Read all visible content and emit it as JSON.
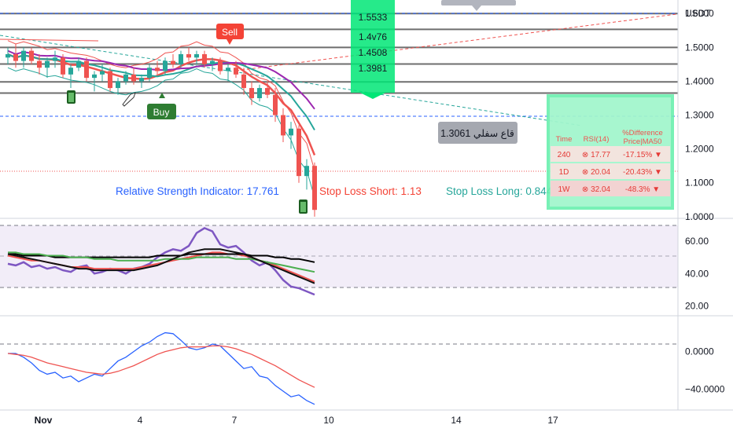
{
  "chart_data": [
    {
      "type": "candlestick",
      "title": "",
      "currency": "USDT",
      "y_ticks": [
        "1.6000",
        "1.5000",
        "1.4000",
        "1.3000",
        "1.2000",
        "1.1000",
        "1.0000"
      ],
      "ylim": [
        0.995,
        1.64
      ],
      "x_ticks": [
        "Nov",
        "4",
        "7",
        "10",
        "14",
        "17"
      ],
      "candles": [
        [
          1.47,
          1.5,
          1.45,
          1.48
        ],
        [
          1.48,
          1.51,
          1.44,
          1.46
        ],
        [
          1.46,
          1.5,
          1.44,
          1.49
        ],
        [
          1.49,
          1.5,
          1.45,
          1.46
        ],
        [
          1.46,
          1.48,
          1.42,
          1.44
        ],
        [
          1.44,
          1.47,
          1.41,
          1.46
        ],
        [
          1.46,
          1.49,
          1.44,
          1.47
        ],
        [
          1.47,
          1.48,
          1.41,
          1.42
        ],
        [
          1.42,
          1.45,
          1.38,
          1.44
        ],
        [
          1.44,
          1.47,
          1.43,
          1.46
        ],
        [
          1.46,
          1.47,
          1.4,
          1.41
        ],
        [
          1.41,
          1.43,
          1.37,
          1.42
        ],
        [
          1.42,
          1.45,
          1.4,
          1.43
        ],
        [
          1.43,
          1.44,
          1.37,
          1.38
        ],
        [
          1.38,
          1.41,
          1.36,
          1.4
        ],
        [
          1.4,
          1.43,
          1.39,
          1.42
        ],
        [
          1.42,
          1.44,
          1.39,
          1.4
        ],
        [
          1.4,
          1.42,
          1.38,
          1.41
        ],
        [
          1.41,
          1.45,
          1.4,
          1.44
        ],
        [
          1.44,
          1.46,
          1.42,
          1.43
        ],
        [
          1.43,
          1.47,
          1.42,
          1.46
        ],
        [
          1.46,
          1.48,
          1.44,
          1.45
        ],
        [
          1.45,
          1.49,
          1.44,
          1.48
        ],
        [
          1.48,
          1.5,
          1.46,
          1.47
        ],
        [
          1.47,
          1.49,
          1.45,
          1.48
        ],
        [
          1.48,
          1.49,
          1.44,
          1.45
        ],
        [
          1.45,
          1.47,
          1.43,
          1.46
        ],
        [
          1.46,
          1.47,
          1.42,
          1.43
        ],
        [
          1.43,
          1.45,
          1.4,
          1.44
        ],
        [
          1.44,
          1.46,
          1.41,
          1.42
        ],
        [
          1.42,
          1.44,
          1.36,
          1.38
        ],
        [
          1.38,
          1.4,
          1.33,
          1.35
        ],
        [
          1.35,
          1.39,
          1.34,
          1.38
        ],
        [
          1.38,
          1.4,
          1.35,
          1.36
        ],
        [
          1.36,
          1.38,
          1.28,
          1.3
        ],
        [
          1.3,
          1.32,
          1.22,
          1.24
        ],
        [
          1.24,
          1.28,
          1.2,
          1.26
        ],
        [
          1.26,
          1.27,
          1.1,
          1.12
        ],
        [
          1.12,
          1.17,
          1.08,
          1.15
        ],
        [
          1.15,
          1.16,
          1.0,
          1.02
        ]
      ],
      "overlay_labels": [
        {
          "text": "1.5533",
          "price": 1.5533
        },
        {
          "text": "1.4v76",
          "price": 1.5076
        },
        {
          "text": "1.4508",
          "price": 1.4508
        },
        {
          "text": "1.3981",
          "price": 1.3981
        }
      ],
      "support_label": "1.3061 قاع سفلي",
      "support_price": 1.3061,
      "signals": {
        "sell": "Sell",
        "buy": "Buy"
      },
      "info": {
        "rsi": "Relative Strength Indicator: 17.761",
        "sl_short": "Stop Loss Short: 1.13",
        "sl_long": "Stop Loss Long: 0.844"
      },
      "colors": {
        "up": "#26a69a",
        "down": "#ef5350",
        "accent": "#2962ff",
        "signal_green": "#00c853"
      }
    },
    {
      "type": "line",
      "name": "rsi-panel",
      "y_ticks": [
        "60.00",
        "40.00",
        "20.00"
      ],
      "ylim": [
        14,
        74
      ],
      "bands": [
        70,
        50,
        30
      ],
      "series": [
        {
          "color": "#7e57c2",
          "values": [
            46,
            45,
            47,
            44,
            45,
            43,
            44,
            42,
            41,
            44,
            45,
            40,
            41,
            43,
            42,
            40,
            43,
            44,
            46,
            50,
            53,
            55,
            54,
            57,
            65,
            68,
            66,
            58,
            56,
            57,
            53,
            48,
            45,
            47,
            42,
            36,
            32,
            31,
            29,
            27
          ]
        },
        {
          "color": "#ef5350",
          "values": [
            51,
            50,
            49,
            48,
            48,
            47,
            46,
            45,
            44,
            44,
            44,
            43,
            43,
            43,
            43,
            43,
            43,
            44,
            45,
            46,
            47,
            48,
            49,
            50,
            51,
            52,
            53,
            53,
            52,
            52,
            51,
            50,
            48,
            47,
            45,
            43,
            41,
            39,
            37,
            35
          ]
        },
        {
          "color": "#000000",
          "values": [
            52,
            52,
            51,
            51,
            51,
            51,
            50,
            50,
            50,
            50,
            50,
            50,
            50,
            50,
            50,
            50,
            50,
            50,
            50,
            51,
            51,
            51,
            51,
            52,
            52,
            52,
            52,
            52,
            52,
            52,
            52,
            51,
            51,
            51,
            50,
            50,
            49,
            49,
            48,
            47
          ]
        },
        {
          "color": "#4caf50",
          "values": [
            53,
            53,
            52,
            52,
            52,
            51,
            51,
            51,
            50,
            50,
            50,
            49,
            49,
            49,
            48,
            48,
            48,
            48,
            48,
            48,
            49,
            49,
            49,
            49,
            50,
            50,
            50,
            50,
            50,
            49,
            49,
            49,
            48,
            47,
            46,
            45,
            44,
            43,
            42,
            41
          ]
        },
        {
          "color": "#111111",
          "values": [
            52,
            51,
            50,
            49,
            48,
            47,
            46,
            45,
            44,
            43,
            43,
            42,
            42,
            42,
            42,
            42,
            42,
            43,
            44,
            45,
            47,
            49,
            51,
            53,
            54,
            55,
            55,
            55,
            54,
            53,
            52,
            50,
            48,
            46,
            44,
            42,
            40,
            38,
            36,
            34
          ]
        }
      ]
    },
    {
      "type": "line",
      "name": "macd-panel",
      "y_ticks": [
        "0.0000",
        "−40.0000"
      ],
      "ylim": [
        -62,
        38
      ],
      "series": [
        {
          "color": "#2962ff",
          "values": [
            -2,
            -2,
            -6,
            -12,
            -20,
            -24,
            -22,
            -28,
            -26,
            -32,
            -28,
            -24,
            -26,
            -18,
            -10,
            -6,
            0,
            6,
            10,
            16,
            20,
            19,
            12,
            4,
            2,
            4,
            8,
            6,
            -2,
            -10,
            -18,
            -16,
            -26,
            -28,
            -36,
            -42,
            -48,
            -46,
            -52,
            -56
          ]
        },
        {
          "color": "#ef5350",
          "values": [
            -2,
            -3,
            -4,
            -6,
            -9,
            -12,
            -14,
            -16,
            -18,
            -20,
            -22,
            -23,
            -24,
            -23,
            -21,
            -18,
            -15,
            -11,
            -7,
            -3,
            0,
            2,
            4,
            5,
            5,
            5,
            6,
            6,
            5,
            3,
            0,
            -3,
            -7,
            -11,
            -15,
            -20,
            -25,
            -30,
            -34,
            -38
          ]
        }
      ]
    },
    {
      "type": "table",
      "headers": [
        "Time",
        "RSI(14)",
        "%Difference Price|MA50"
      ],
      "rows": [
        [
          "240",
          "⊗ 17.77",
          "-17.15% ▼"
        ],
        [
          "1D",
          "⊗ 20.04",
          "-20.43% ▼"
        ],
        [
          "1W",
          "⊗ 32.04",
          "-48.3% ▼"
        ]
      ]
    }
  ]
}
